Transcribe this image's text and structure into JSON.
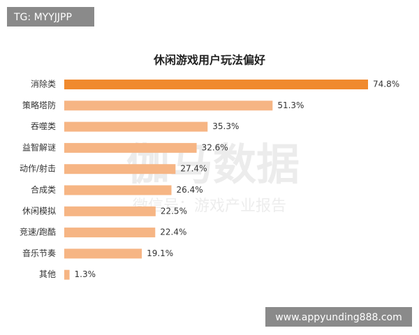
{
  "overlays": {
    "badge": "TG: MYYJJPP",
    "url": "www.appyunding888.com"
  },
  "chart_data": {
    "type": "hbar",
    "title": "休闲游戏用户玩法偏好",
    "watermark": [
      "伽马数据",
      "微信号：游戏产业报告"
    ],
    "categories": [
      "消除类",
      "策略塔防",
      "吞噬类",
      "益智解谜",
      "动作/射击",
      "合成类",
      "休闲模拟",
      "竞速/跑酷",
      "音乐节奏",
      "其他"
    ],
    "values": [
      74.8,
      51.3,
      35.3,
      32.6,
      27.4,
      26.4,
      22.5,
      22.4,
      19.1,
      1.3
    ],
    "value_labels": [
      "74.8%",
      "51.3%",
      "35.3%",
      "32.6%",
      "27.4%",
      "26.4%",
      "22.5%",
      "22.4%",
      "19.1%",
      "1.3%"
    ],
    "colors": [
      "#f08a2e",
      "#f6b584",
      "#f6b584",
      "#f6b584",
      "#f6b584",
      "#f6b584",
      "#f6b584",
      "#f6b584",
      "#f6b584",
      "#f6b584"
    ]
  }
}
